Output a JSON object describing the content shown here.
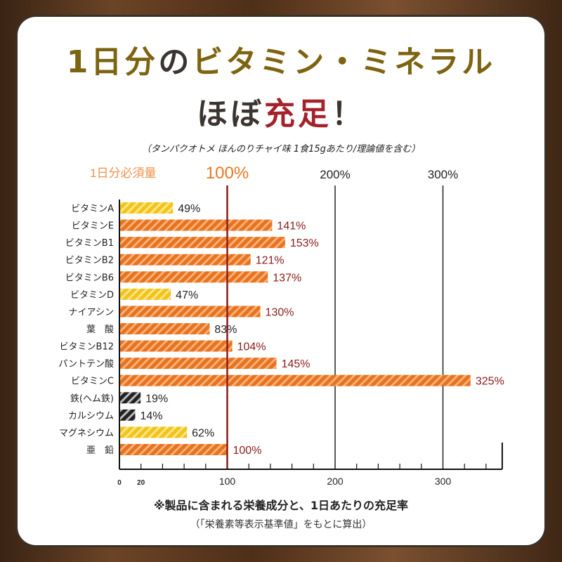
{
  "title": {
    "line1_a": "1日分",
    "line1_b": "の",
    "line1_c": "ビタミン・ミネラル",
    "line2_a": "ほぼ",
    "line2_b": "充足",
    "line2_c": "！"
  },
  "subtitle": "（タンパクオトメ ほんのりチャイ味 1食15gあたり/理論値を含む）",
  "footnote": "※製品に含まれる栄養成分と、1日あたりの充足率",
  "footnote_sub": "（「栄養素等表示基準値」をもとに算出）",
  "colors": {
    "orange": "#e8731e",
    "yellow": "#f2c318",
    "black": "#222222",
    "reference_line": "#8c1a1a",
    "label_high": "#8c1a1a",
    "label_low": "#222222",
    "title_olive": "#7d6410",
    "title_red": "#a3222c"
  },
  "chart_data": {
    "type": "bar",
    "orientation": "horizontal",
    "header_label": "1日分必須量",
    "percent_labels": [
      "100%",
      "200%",
      "300%"
    ],
    "categories": [
      "ビタミンA",
      "ビタミンE",
      "ビタミンB1",
      "ビタミンB2",
      "ビタミンB6",
      "ビタミンD",
      "ナイアシン",
      "葉　酸",
      "ビタミンB12",
      "パントテン酸",
      "ビタミンC",
      "鉄(ヘム鉄)",
      "カルシウム",
      "マグネシウム",
      "亜　鉛"
    ],
    "values": [
      49,
      141,
      153,
      121,
      137,
      47,
      130,
      83,
      104,
      145,
      325,
      19,
      14,
      62,
      100
    ],
    "value_labels": [
      "49%",
      "141%",
      "153%",
      "121%",
      "137%",
      "47%",
      "130%",
      "83%",
      "104%",
      "145%",
      "325%",
      "19%",
      "14%",
      "62%",
      "100%"
    ],
    "bar_colors": [
      "yellow",
      "orange",
      "orange",
      "orange",
      "orange",
      "yellow",
      "orange",
      "orange",
      "orange",
      "orange",
      "orange",
      "black",
      "black",
      "yellow",
      "orange"
    ],
    "xlim": [
      0,
      355
    ],
    "x_tick_labels": [
      "0",
      "20",
      "100",
      "200",
      "300"
    ],
    "x_tick_values": [
      0,
      20,
      100,
      200,
      300
    ],
    "minor_tick_step": 20,
    "reference_line": 100,
    "gridlines": [
      200,
      300
    ],
    "pattern": "diagonal-stripes"
  }
}
